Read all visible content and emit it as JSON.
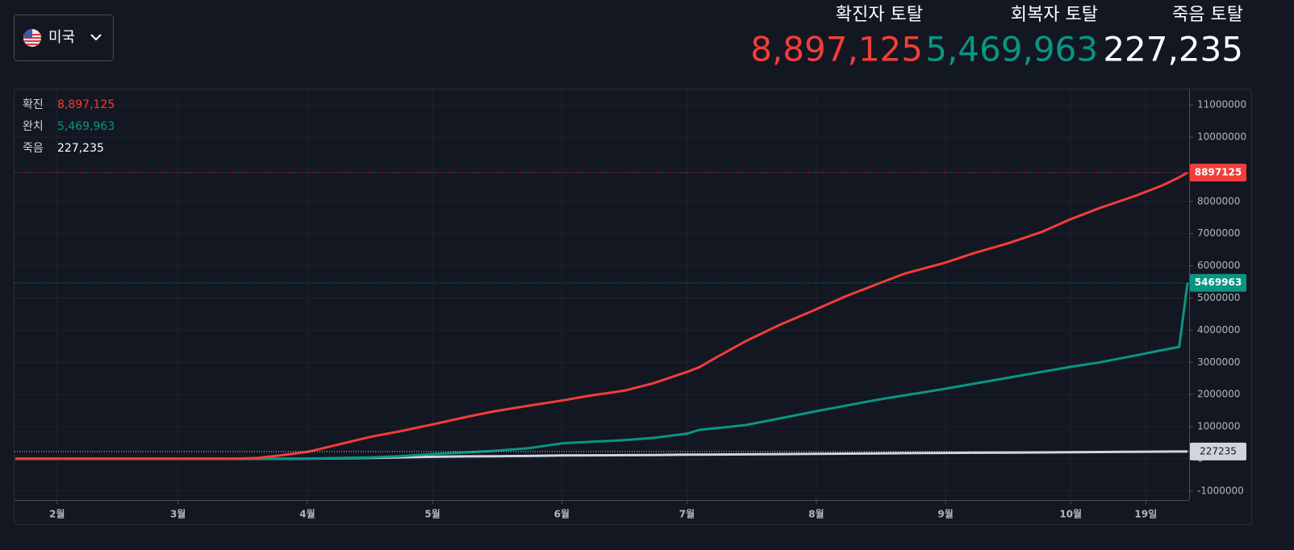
{
  "country": "미국",
  "stats": [
    {
      "label": "확진자 토탈",
      "value": "8,897,125"
    },
    {
      "label": "회복자 토탈",
      "value": "5,469,963"
    },
    {
      "label": "죽음 토탈",
      "value": "227,235"
    }
  ],
  "chart_data": {
    "type": "line",
    "x": [
      22,
      40,
      60,
      70,
      75,
      80,
      85,
      92,
      100,
      107,
      114,
      122,
      130,
      137,
      145,
      153,
      160,
      168,
      175,
      183,
      186,
      190,
      197,
      205,
      214,
      221,
      228,
      235,
      245,
      252,
      260,
      268,
      275,
      282,
      290,
      297,
      301,
      303
    ],
    "xlim": [
      22,
      303
    ],
    "xticks": [
      {
        "value": 32,
        "label": "2월"
      },
      {
        "value": 61,
        "label": "3월"
      },
      {
        "value": 92,
        "label": "4월"
      },
      {
        "value": 122,
        "label": "5월"
      },
      {
        "value": 153,
        "label": "6월"
      },
      {
        "value": 183,
        "label": "7월"
      },
      {
        "value": 214,
        "label": "8월"
      },
      {
        "value": 245,
        "label": "9월"
      },
      {
        "value": 275,
        "label": "10월"
      },
      {
        "value": 293,
        "label": "19일"
      }
    ],
    "ylim": [
      -1280000,
      11380000
    ],
    "yticks": [
      -1000000,
      0,
      1000000,
      2000000,
      3000000,
      4000000,
      5000000,
      6000000,
      7000000,
      8000000,
      9000000,
      10000000,
      11000000
    ],
    "grid": true,
    "series": [
      {
        "name": "확진",
        "color": "#f23d3a",
        "values": [
          1,
          15,
          70,
          1000,
          3500,
          25000,
          100000,
          215000,
          460000,
          680000,
          850000,
          1070000,
          1300000,
          1480000,
          1650000,
          1810000,
          1970000,
          2120000,
          2350000,
          2700000,
          2850000,
          3150000,
          3650000,
          4150000,
          4650000,
          5050000,
          5400000,
          5750000,
          6100000,
          6400000,
          6700000,
          7050000,
          7450000,
          7800000,
          8150000,
          8500000,
          8750000,
          8897125
        ]
      },
      {
        "name": "완치",
        "color": "#089683",
        "values": [
          0,
          0,
          5,
          50,
          100,
          500,
          2000,
          8000,
          25000,
          40000,
          80000,
          150000,
          200000,
          250000,
          330000,
          480000,
          530000,
          580000,
          650000,
          780000,
          900000,
          950000,
          1050000,
          1250000,
          1480000,
          1650000,
          1820000,
          1970000,
          2180000,
          2340000,
          2520000,
          2700000,
          2860000,
          3000000,
          3200000,
          3380000,
          3480000,
          5469963
        ]
      },
      {
        "name": "죽음",
        "color": "#d1d4dc",
        "values": [
          0,
          0,
          1,
          50,
          150,
          500,
          1500,
          5000,
          15000,
          30000,
          45000,
          63000,
          75000,
          82000,
          90000,
          105000,
          110000,
          115000,
          120000,
          128000,
          130000,
          133000,
          138000,
          146000,
          155000,
          162000,
          170000,
          176000,
          184000,
          190000,
          195000,
          200000,
          207000,
          212000,
          218000,
          223000,
          226000,
          227235
        ]
      }
    ]
  }
}
